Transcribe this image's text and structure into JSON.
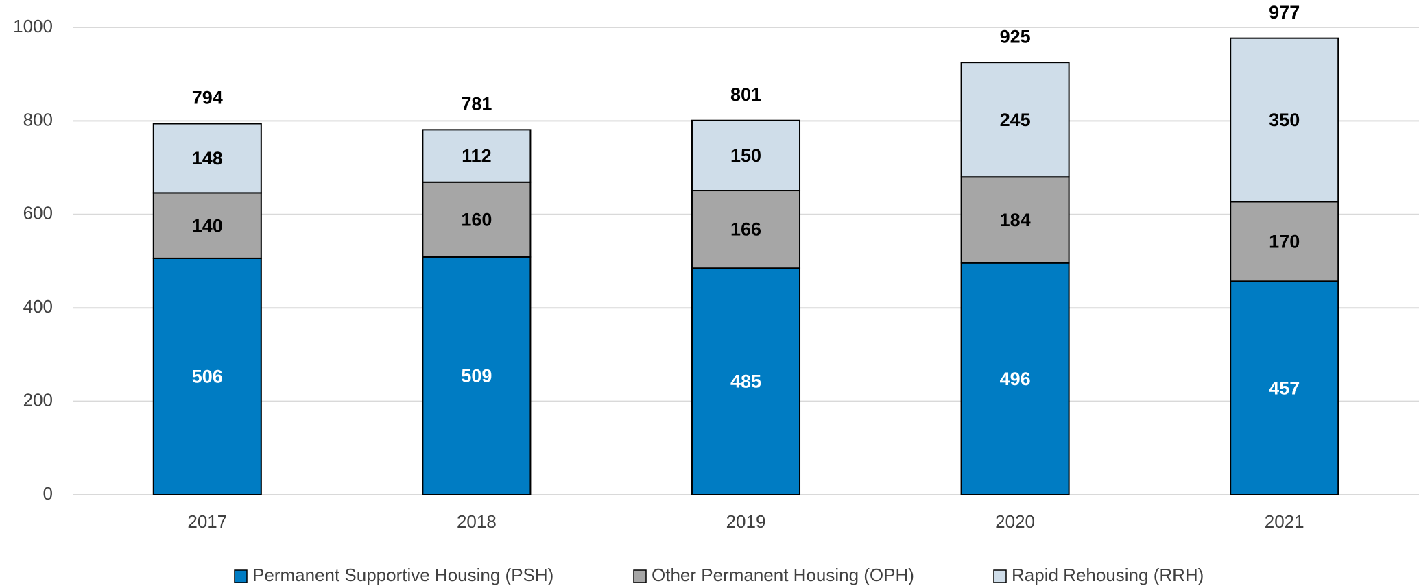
{
  "chart_data": {
    "type": "stacked_bar",
    "categories": [
      "2017",
      "2018",
      "2019",
      "2020",
      "2021"
    ],
    "series": [
      {
        "name": "Permanent Supportive Housing (PSH)",
        "color": "#007cc3",
        "values": [
          506,
          509,
          485,
          496,
          457
        ]
      },
      {
        "name": "Other Permanent Housing (OPH)",
        "color": "#a6a6a6",
        "values": [
          140,
          160,
          166,
          184,
          170
        ]
      },
      {
        "name": "Rapid Rehousing (RRH)",
        "color": "#cfdde9",
        "values": [
          148,
          112,
          150,
          245,
          350
        ]
      }
    ],
    "totals": [
      794,
      781,
      801,
      925,
      977
    ],
    "ylim": [
      0,
      1000
    ],
    "yticks": [
      0,
      200,
      400,
      600,
      800,
      1000
    ],
    "grid": true,
    "legend": "bottom"
  }
}
